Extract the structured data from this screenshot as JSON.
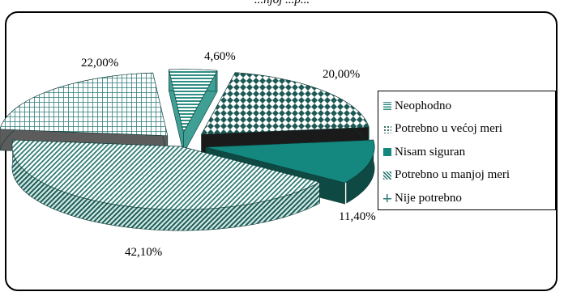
{
  "caption": "...njoj ...p...",
  "chart_data": {
    "type": "pie",
    "title": "",
    "categories": [
      "Neophodno",
      "Potrebno u većoj meri",
      "Nisam siguran",
      "Potrebno u manjoj meri",
      "Nije potrebno"
    ],
    "values": [
      4.6,
      20.0,
      11.4,
      42.1,
      22.0
    ],
    "labels": [
      "4,60%",
      "20,00%",
      "11,40%",
      "42,10%",
      "22,00%"
    ],
    "three_d": true,
    "exploded": true,
    "legend_position": "right"
  },
  "colors": {
    "neophodno": "#2f8f84",
    "potrebno_vecoj": "#1e5a55",
    "nisam_siguran": "#14877e",
    "potrebno_manjoj": "#2e7b74",
    "nije_potrebno": "#2c7b78"
  }
}
